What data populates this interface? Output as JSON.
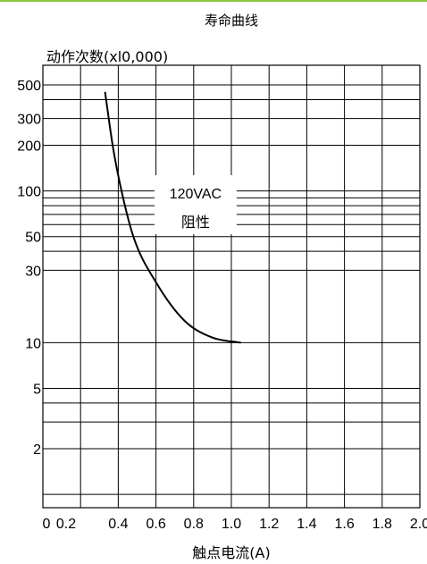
{
  "chart_data": {
    "type": "line",
    "title": "寿命曲线",
    "xlabel": "触点电流(A)",
    "ylabel": "动作次数(xl0,000)",
    "x_ticks": [
      "0",
      "0.2",
      "0.4",
      "0.6",
      "0.8",
      "1.0",
      "1.2",
      "1.4",
      "1.6",
      "1.8",
      "2.0"
    ],
    "y_ticks": [
      {
        "label": "500",
        "value": 500
      },
      {
        "label": "300",
        "value": 300
      },
      {
        "label": "200",
        "value": 200
      },
      {
        "label": "100",
        "value": 100
      },
      {
        "label": "50",
        "value": 50
      },
      {
        "label": "30",
        "value": 30
      },
      {
        "label": "10",
        "value": 10
      },
      {
        "label": "5",
        "value": 5
      },
      {
        "label": "2",
        "value": 2
      }
    ],
    "y_scale": "log",
    "xlim": [
      0,
      2.0
    ],
    "grid": true,
    "annotation": {
      "line1": "120VAC",
      "line2": "阻性"
    },
    "series": [
      {
        "points": [
          [
            0.33,
            450
          ],
          [
            0.37,
            200
          ],
          [
            0.41,
            110
          ],
          [
            0.48,
            50
          ],
          [
            0.6,
            25
          ],
          [
            0.75,
            14
          ],
          [
            0.9,
            10.8
          ],
          [
            1.05,
            10
          ]
        ]
      }
    ],
    "colors": {
      "curve": "#000000",
      "grid": "#000000",
      "top_rule": "#8cc63f"
    }
  }
}
